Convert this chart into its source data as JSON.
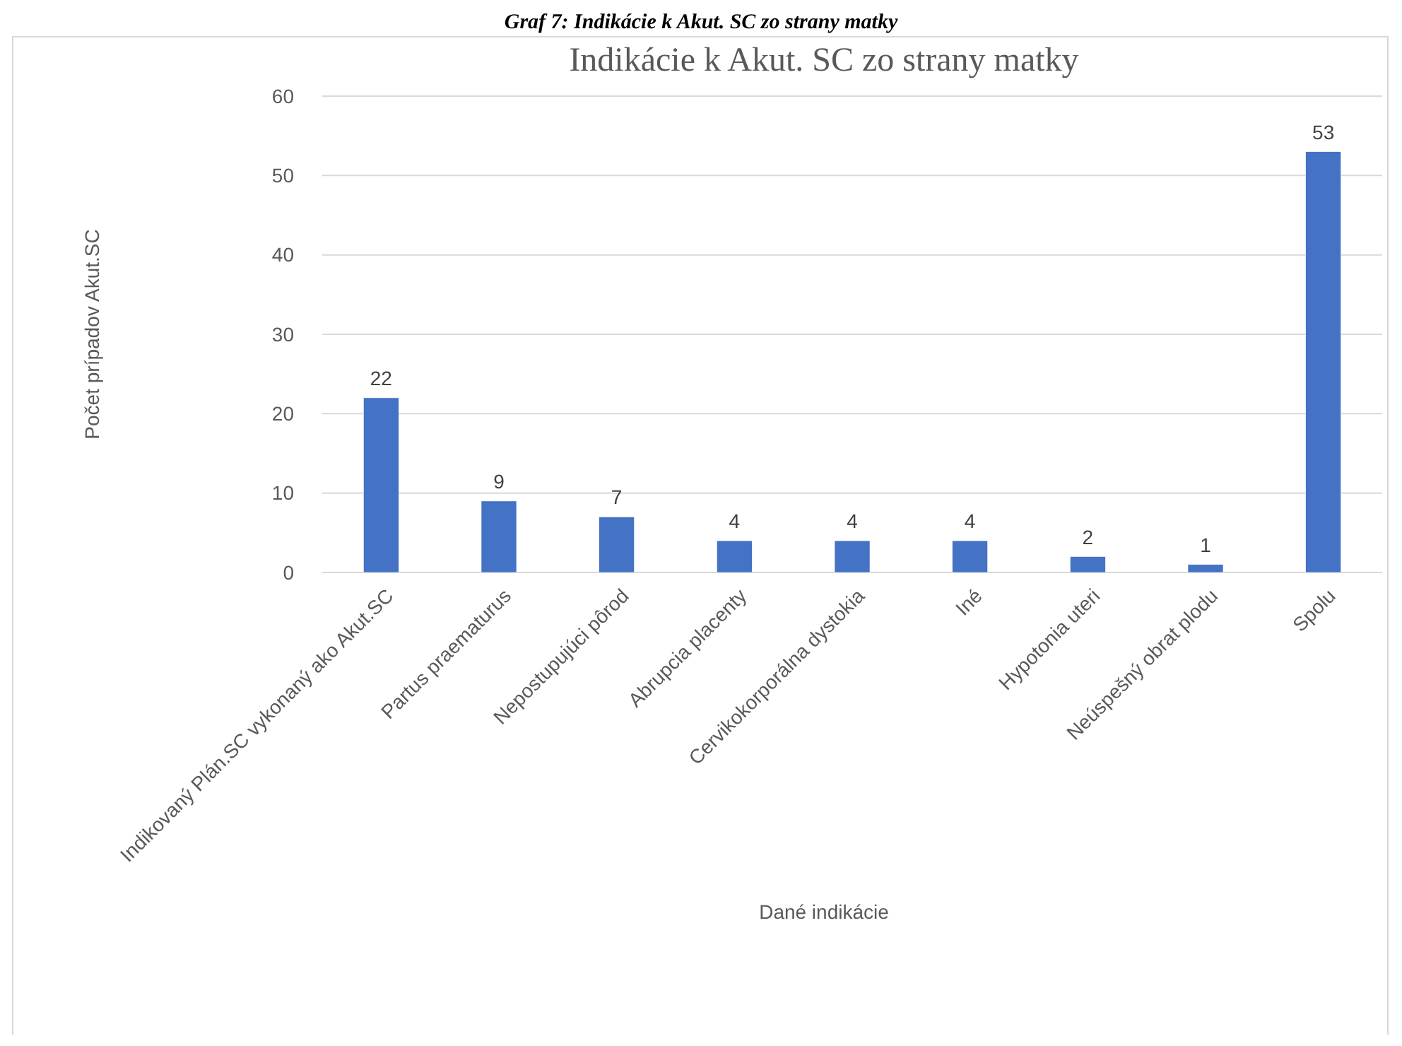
{
  "chart_data": {
    "type": "bar",
    "title": "Indikácie k Akut. SC zo strany matky",
    "annotations": [
      "Graf 7: Indikácie k Akut. SC zo strany matky"
    ],
    "xlabel": "Dané indikácie",
    "ylabel": "Počet prípadov Akut.SC",
    "categories": [
      "Indikovaný Plán.SC vykonaný ako Akut.SC",
      "Partus praematurus",
      "Nepostupujúci pôrod",
      "Abrupcia placenty",
      "Cervikokorporálna dystokia",
      "Iné",
      "Hypotonia uteri",
      "Neúspešný obrat plodu",
      "Spolu"
    ],
    "values": [
      22,
      9,
      7,
      4,
      4,
      4,
      2,
      1,
      53
    ],
    "color": "#4472c4",
    "ylim": [
      0,
      60
    ],
    "yticks": [
      0,
      10,
      20,
      30,
      40,
      50,
      60
    ],
    "grid": "y",
    "data_labels": true
  }
}
